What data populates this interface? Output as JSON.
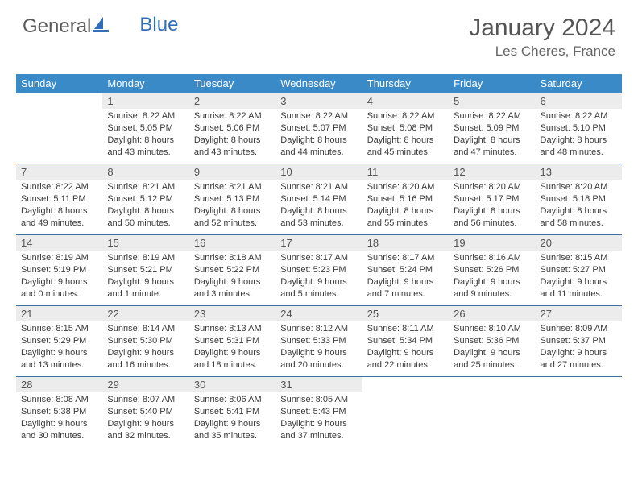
{
  "brand": {
    "first": "General",
    "second": "Blue"
  },
  "title": "January 2024",
  "location": "Les Cheres, France",
  "colors": {
    "header_bg": "#3a8ac8",
    "header_text": "#ffffff",
    "border": "#3a6fa0",
    "daynum_bg": "#ececec",
    "text": "#3a3a3a",
    "brand_blue": "#2e6fb7"
  },
  "dayNames": [
    "Sunday",
    "Monday",
    "Tuesday",
    "Wednesday",
    "Thursday",
    "Friday",
    "Saturday"
  ],
  "weeks": [
    [
      null,
      {
        "n": "1",
        "l1": "Sunrise: 8:22 AM",
        "l2": "Sunset: 5:05 PM",
        "l3": "Daylight: 8 hours",
        "l4": "and 43 minutes."
      },
      {
        "n": "2",
        "l1": "Sunrise: 8:22 AM",
        "l2": "Sunset: 5:06 PM",
        "l3": "Daylight: 8 hours",
        "l4": "and 43 minutes."
      },
      {
        "n": "3",
        "l1": "Sunrise: 8:22 AM",
        "l2": "Sunset: 5:07 PM",
        "l3": "Daylight: 8 hours",
        "l4": "and 44 minutes."
      },
      {
        "n": "4",
        "l1": "Sunrise: 8:22 AM",
        "l2": "Sunset: 5:08 PM",
        "l3": "Daylight: 8 hours",
        "l4": "and 45 minutes."
      },
      {
        "n": "5",
        "l1": "Sunrise: 8:22 AM",
        "l2": "Sunset: 5:09 PM",
        "l3": "Daylight: 8 hours",
        "l4": "and 47 minutes."
      },
      {
        "n": "6",
        "l1": "Sunrise: 8:22 AM",
        "l2": "Sunset: 5:10 PM",
        "l3": "Daylight: 8 hours",
        "l4": "and 48 minutes."
      }
    ],
    [
      {
        "n": "7",
        "l1": "Sunrise: 8:22 AM",
        "l2": "Sunset: 5:11 PM",
        "l3": "Daylight: 8 hours",
        "l4": "and 49 minutes."
      },
      {
        "n": "8",
        "l1": "Sunrise: 8:21 AM",
        "l2": "Sunset: 5:12 PM",
        "l3": "Daylight: 8 hours",
        "l4": "and 50 minutes."
      },
      {
        "n": "9",
        "l1": "Sunrise: 8:21 AM",
        "l2": "Sunset: 5:13 PM",
        "l3": "Daylight: 8 hours",
        "l4": "and 52 minutes."
      },
      {
        "n": "10",
        "l1": "Sunrise: 8:21 AM",
        "l2": "Sunset: 5:14 PM",
        "l3": "Daylight: 8 hours",
        "l4": "and 53 minutes."
      },
      {
        "n": "11",
        "l1": "Sunrise: 8:20 AM",
        "l2": "Sunset: 5:16 PM",
        "l3": "Daylight: 8 hours",
        "l4": "and 55 minutes."
      },
      {
        "n": "12",
        "l1": "Sunrise: 8:20 AM",
        "l2": "Sunset: 5:17 PM",
        "l3": "Daylight: 8 hours",
        "l4": "and 56 minutes."
      },
      {
        "n": "13",
        "l1": "Sunrise: 8:20 AM",
        "l2": "Sunset: 5:18 PM",
        "l3": "Daylight: 8 hours",
        "l4": "and 58 minutes."
      }
    ],
    [
      {
        "n": "14",
        "l1": "Sunrise: 8:19 AM",
        "l2": "Sunset: 5:19 PM",
        "l3": "Daylight: 9 hours",
        "l4": "and 0 minutes."
      },
      {
        "n": "15",
        "l1": "Sunrise: 8:19 AM",
        "l2": "Sunset: 5:21 PM",
        "l3": "Daylight: 9 hours",
        "l4": "and 1 minute."
      },
      {
        "n": "16",
        "l1": "Sunrise: 8:18 AM",
        "l2": "Sunset: 5:22 PM",
        "l3": "Daylight: 9 hours",
        "l4": "and 3 minutes."
      },
      {
        "n": "17",
        "l1": "Sunrise: 8:17 AM",
        "l2": "Sunset: 5:23 PM",
        "l3": "Daylight: 9 hours",
        "l4": "and 5 minutes."
      },
      {
        "n": "18",
        "l1": "Sunrise: 8:17 AM",
        "l2": "Sunset: 5:24 PM",
        "l3": "Daylight: 9 hours",
        "l4": "and 7 minutes."
      },
      {
        "n": "19",
        "l1": "Sunrise: 8:16 AM",
        "l2": "Sunset: 5:26 PM",
        "l3": "Daylight: 9 hours",
        "l4": "and 9 minutes."
      },
      {
        "n": "20",
        "l1": "Sunrise: 8:15 AM",
        "l2": "Sunset: 5:27 PM",
        "l3": "Daylight: 9 hours",
        "l4": "and 11 minutes."
      }
    ],
    [
      {
        "n": "21",
        "l1": "Sunrise: 8:15 AM",
        "l2": "Sunset: 5:29 PM",
        "l3": "Daylight: 9 hours",
        "l4": "and 13 minutes."
      },
      {
        "n": "22",
        "l1": "Sunrise: 8:14 AM",
        "l2": "Sunset: 5:30 PM",
        "l3": "Daylight: 9 hours",
        "l4": "and 16 minutes."
      },
      {
        "n": "23",
        "l1": "Sunrise: 8:13 AM",
        "l2": "Sunset: 5:31 PM",
        "l3": "Daylight: 9 hours",
        "l4": "and 18 minutes."
      },
      {
        "n": "24",
        "l1": "Sunrise: 8:12 AM",
        "l2": "Sunset: 5:33 PM",
        "l3": "Daylight: 9 hours",
        "l4": "and 20 minutes."
      },
      {
        "n": "25",
        "l1": "Sunrise: 8:11 AM",
        "l2": "Sunset: 5:34 PM",
        "l3": "Daylight: 9 hours",
        "l4": "and 22 minutes."
      },
      {
        "n": "26",
        "l1": "Sunrise: 8:10 AM",
        "l2": "Sunset: 5:36 PM",
        "l3": "Daylight: 9 hours",
        "l4": "and 25 minutes."
      },
      {
        "n": "27",
        "l1": "Sunrise: 8:09 AM",
        "l2": "Sunset: 5:37 PM",
        "l3": "Daylight: 9 hours",
        "l4": "and 27 minutes."
      }
    ],
    [
      {
        "n": "28",
        "l1": "Sunrise: 8:08 AM",
        "l2": "Sunset: 5:38 PM",
        "l3": "Daylight: 9 hours",
        "l4": "and 30 minutes."
      },
      {
        "n": "29",
        "l1": "Sunrise: 8:07 AM",
        "l2": "Sunset: 5:40 PM",
        "l3": "Daylight: 9 hours",
        "l4": "and 32 minutes."
      },
      {
        "n": "30",
        "l1": "Sunrise: 8:06 AM",
        "l2": "Sunset: 5:41 PM",
        "l3": "Daylight: 9 hours",
        "l4": "and 35 minutes."
      },
      {
        "n": "31",
        "l1": "Sunrise: 8:05 AM",
        "l2": "Sunset: 5:43 PM",
        "l3": "Daylight: 9 hours",
        "l4": "and 37 minutes."
      },
      null,
      null,
      null
    ]
  ]
}
